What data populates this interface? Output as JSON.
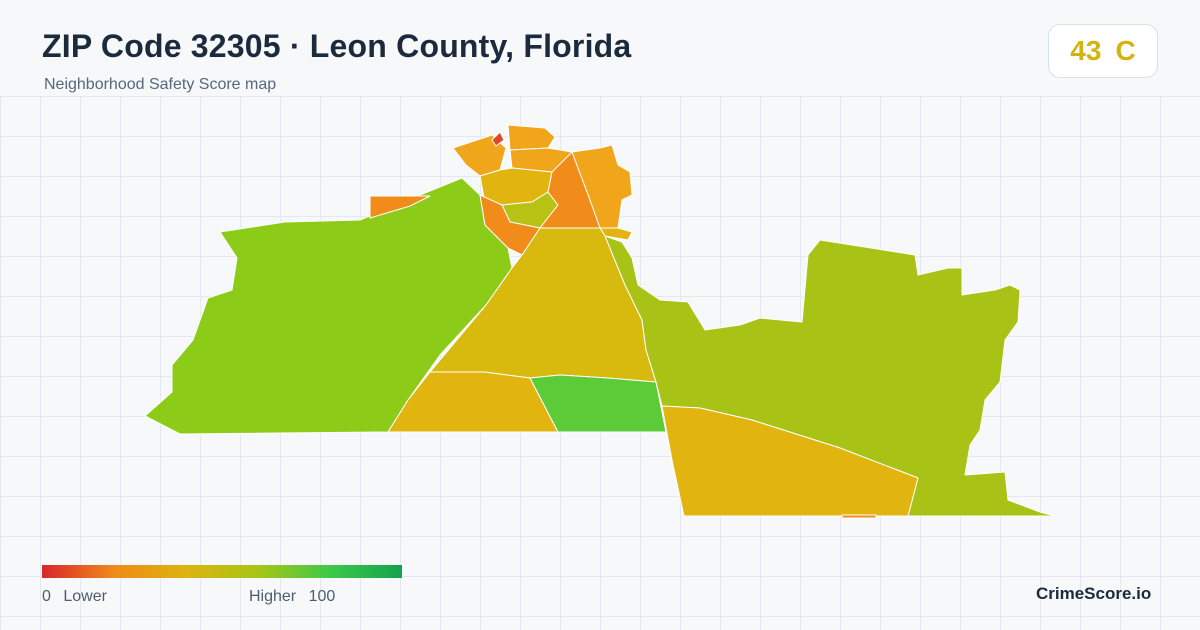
{
  "header": {
    "title": "ZIP Code 32305 · Leon County, Florida",
    "subtitle": "Neighborhood Safety Score map"
  },
  "score": {
    "value": "43",
    "grade": "C",
    "color": "#d4b20f"
  },
  "legend": {
    "min_value": "0",
    "min_label": "Lower",
    "max_label": "Higher",
    "max_value": "100",
    "gradient_colors": [
      "#d7262a",
      "#f08a1a",
      "#dcb30f",
      "#a7c516",
      "#3ec94a",
      "#13a24d"
    ]
  },
  "brand": "CrimeScore.io",
  "map": {
    "background": "#f6f8fa",
    "region_colors": {
      "lowest": "#e0462a",
      "orange": "#f18b1a",
      "amber": "#f0a51a",
      "gold": "#e2b40f",
      "yellow": "#d8b90e",
      "olive": "#b8c214",
      "yellow_green": "#a8c316",
      "light_green": "#8ccb18",
      "green": "#5ccb38"
    }
  }
}
